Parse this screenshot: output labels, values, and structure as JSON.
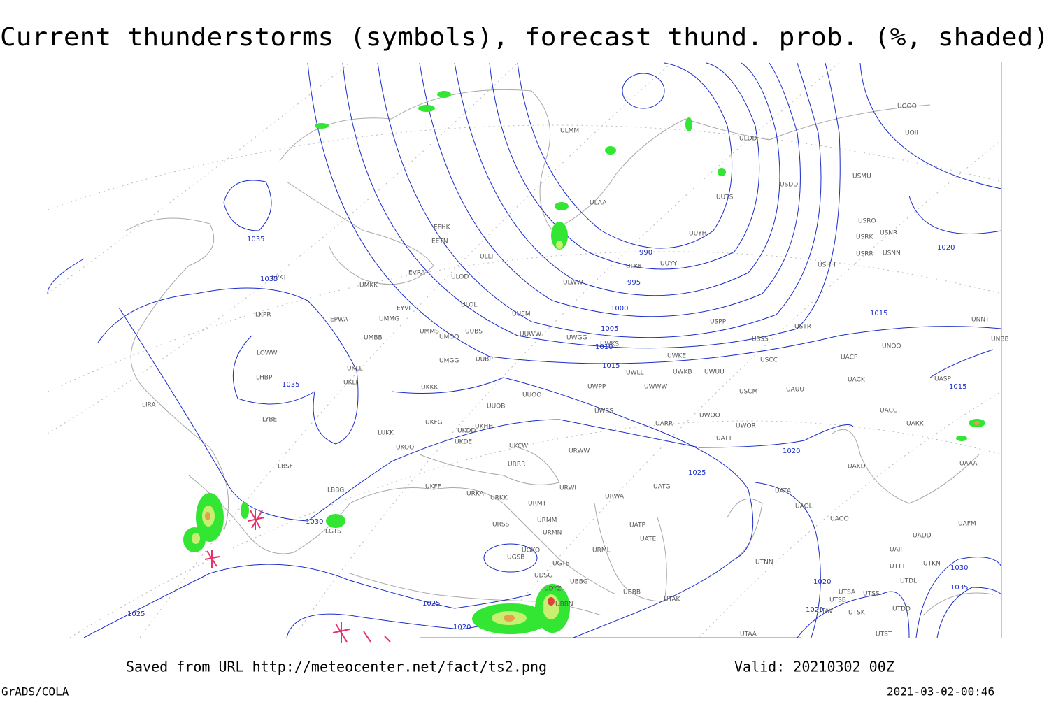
{
  "header": {
    "title": "Current thunderstorms (symbols), forecast thund. prob. (%, shaded)"
  },
  "stations": [
    "EFHK",
    "EETN",
    "EVRA",
    "ULOD",
    "UMKK",
    "EYVI",
    "UMMG",
    "EPWA",
    "LKPR",
    "UMMS",
    "UMOO",
    "UUBS",
    "UUEM",
    "ULOL",
    "UUWW",
    "UWGG",
    "UWKS",
    "UMBB",
    "LOWW",
    "UKLL",
    "UKLI",
    "UMGG",
    "UUBP",
    "LHBP",
    "LIRA",
    "LYBE",
    "UKKK",
    "UUOO",
    "UWPP",
    "UWWW",
    "UWLL",
    "UWKE",
    "UWKB",
    "UWUU",
    "UUOB",
    "UKHH",
    "UKFG",
    "UKDD",
    "UKDE",
    "LUKK",
    "UKOO",
    "UKCW",
    "URRR",
    "UWSS",
    "UARR",
    "UWOO",
    "UWOR",
    "UATT",
    "URWW",
    "LBSF",
    "LBBG",
    "UKFF",
    "URKA",
    "URKK",
    "URWI",
    "URMT",
    "URMM",
    "URMN",
    "URSS",
    "URWA",
    "UATG",
    "UATP",
    "UATE",
    "URML",
    "UGSB",
    "UGKO",
    "UGTB",
    "UBBG",
    "UDSG",
    "UBBN",
    "UDYZ",
    "UBBB",
    "LGTS",
    "UTAK",
    "UTAA",
    "UTNN",
    "UATA",
    "UAOL",
    "UAOO",
    "UACC",
    "UAKK",
    "UAKD",
    "UAAA",
    "UAFM",
    "UADD",
    "UAII",
    "UTTT",
    "UTKN",
    "UTDL",
    "UTSA",
    "UTSS",
    "UTSB",
    "UTSK",
    "UTDD",
    "UTST",
    "UTAV",
    "UAUU",
    "USCM",
    "USCC",
    "UACP",
    "UACK",
    "UASP",
    "UNOO",
    "UNNT",
    "UNBB",
    "USTR",
    "USSS",
    "USPP",
    "UUYY",
    "ULKK",
    "UUYH",
    "UUTS",
    "ULWW",
    "ULAA",
    "ULLI",
    "ULMM",
    "ULDD",
    "USDD",
    "USMU",
    "USRO",
    "USRK",
    "USNR",
    "USRR",
    "USNN",
    "USHH",
    "UOOO",
    "UOII",
    "EPKT"
  ],
  "isobar_labels": [
    1035,
    1035,
    990,
    995,
    1000,
    1005,
    1010,
    1015,
    1035,
    1030,
    1025,
    1025,
    1020,
    1020,
    1025,
    1020,
    1015,
    1015,
    1020,
    1020,
    1030,
    1035
  ],
  "footer": {
    "source": "Saved from URL http://meteocenter.net/fact/ts2.png",
    "valid": "Valid: 20210302 00Z",
    "software": "GrADS/COLA",
    "timestamp": "2021-03-02-00:46"
  }
}
